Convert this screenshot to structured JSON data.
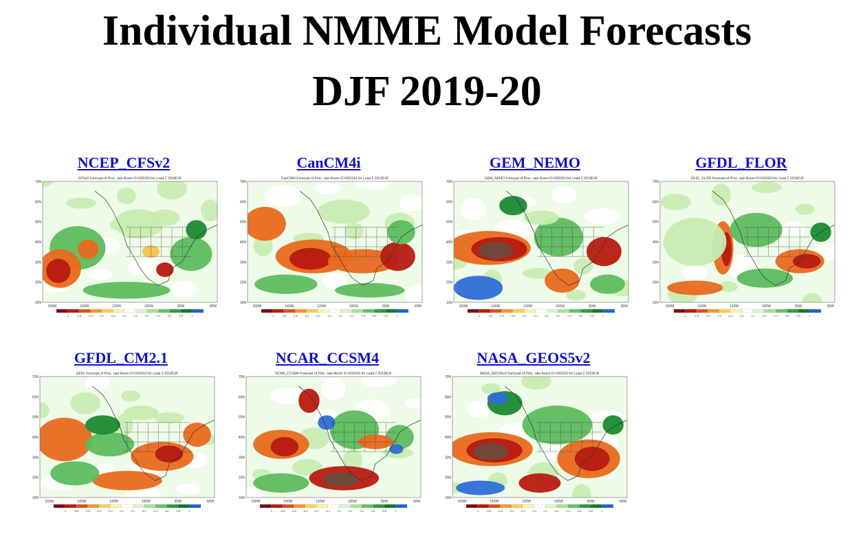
{
  "page": {
    "title_line1": "Individual NMME Model Forecasts",
    "title_line2": "DJF 2019-20"
  },
  "panels": [
    {
      "label": "NCEP_CFSv2",
      "subtitle": "CFSv2 Forecast of Prec. rate Anom IC=201910 for Lead 2 2019DJF"
    },
    {
      "label": "CanCM4i",
      "subtitle": "CanCM4i Forecast of Prec. rate Anom IC=201910 for Lead 2 2019DJF"
    },
    {
      "label": "GEM_NEMO",
      "subtitle": "GEM_NEMO Forecast of Prec. rate Anom IC=201910 for Lead 2 2019DJF"
    },
    {
      "label": "GFDL_FLOR",
      "subtitle": "GFDL_FLOR Forecast of Prec. rate Anom IC=201910 for Lead 2 2019DJF"
    },
    {
      "label": "GFDL_CM2.1",
      "subtitle": "GFDL Forecast of Prec. rate Anom IC=201910 for Lead 2 2019DJF"
    },
    {
      "label": "NCAR_CCSM4",
      "subtitle": "NCAR_CCSM4 Forecast of Prec. rate Anom IC=201910 for Lead 2 2019DJF"
    },
    {
      "label": "NASA_GEOS5v2",
      "subtitle": "NASA_GEOS5v2 Forecast of Prec. rate Anom IC=201910 for Lead 2 2019DJF"
    }
  ],
  "map_axes": {
    "lat_labels": [
      "70N",
      "60N",
      "50N",
      "40N",
      "30N",
      "20N",
      "10N"
    ],
    "lon_labels": [
      "160W",
      "140W",
      "120W",
      "100W",
      "80W",
      "60W"
    ]
  },
  "colorbar": {
    "labels": [
      "-1",
      "-0.8",
      "-0.6",
      "-0.4",
      "-0.2",
      "-0.1",
      "0.1",
      "0.2",
      "0.4",
      "0.6",
      "0.8",
      "1"
    ],
    "colors": [
      "#7a0a0a",
      "#b81a10",
      "#e0501c",
      "#f29a2a",
      "#f8cf5a",
      "#fff2a8",
      "#ffffff",
      "#d8f5c8",
      "#a6e29a",
      "#62c466",
      "#27a040",
      "#0b7a2a",
      "#1e64d4"
    ]
  },
  "palette": {
    "link": "#1010c8",
    "dark": "#6b4a3c",
    "red": "#b81a10",
    "orange": "#e86a1e",
    "yellow": "#f6c24a",
    "lightgreen": "#c6ecb0",
    "green": "#5cbc5e",
    "darkgreen": "#1b8a34",
    "blue": "#2e6ed6"
  }
}
